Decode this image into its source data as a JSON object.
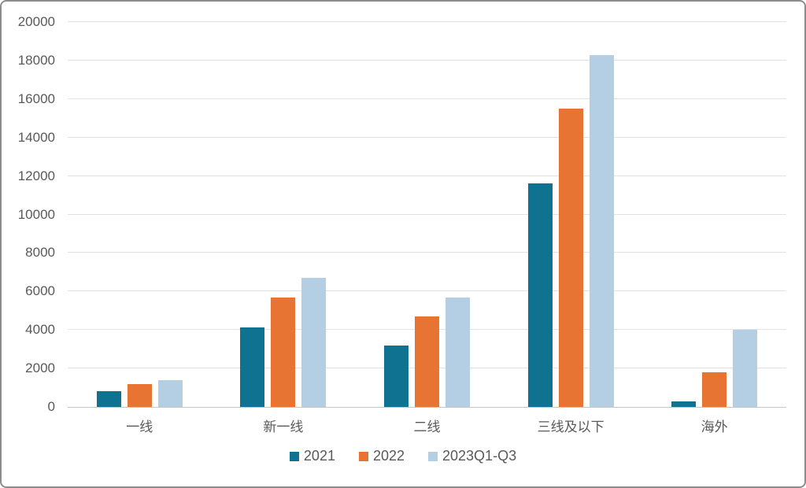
{
  "chart_data": {
    "type": "bar",
    "title": "",
    "xlabel": "",
    "ylabel": "",
    "categories": [
      "一线",
      "新一线",
      "二线",
      "三线及以下",
      "海外"
    ],
    "series": [
      {
        "name": "2021",
        "color": "#0F7290",
        "values": [
          800,
          4150,
          3200,
          11600,
          270
        ]
      },
      {
        "name": "2022",
        "color": "#E87433",
        "values": [
          1200,
          5700,
          4700,
          15500,
          1800
        ]
      },
      {
        "name": "2023Q1-Q3",
        "color": "#B4CFE3",
        "values": [
          1400,
          6700,
          5700,
          18300,
          4000
        ]
      }
    ],
    "ylim": [
      0,
      20000
    ],
    "ytick_step": 2000,
    "ytick_labels": [
      "0",
      "2000",
      "4000",
      "6000",
      "8000",
      "10000",
      "12000",
      "14000",
      "16000",
      "18000",
      "20000"
    ],
    "grid": true,
    "legend_position": "bottom"
  },
  "colors": {
    "background": "#FFFFFF",
    "frame_border": "#8C8C8C",
    "text": "#595959",
    "gridline": "#E2E2E2",
    "axis_line": "#C6C6C6"
  }
}
